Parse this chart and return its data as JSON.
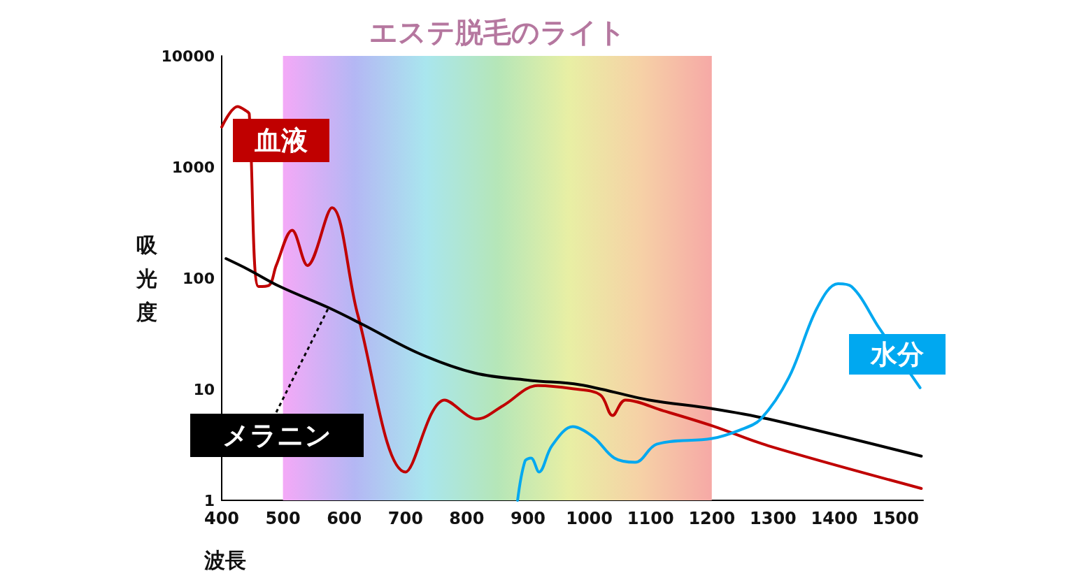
{
  "chart_data": {
    "type": "line",
    "xlabel": "波長",
    "ylabel": "吸光度",
    "log": "y",
    "grid": false,
    "legend": false,
    "marker": "none",
    "line_style": "solid",
    "xlim": [
      400,
      1545
    ],
    "xticks": [
      400,
      500,
      600,
      700,
      800,
      900,
      1000,
      1100,
      1200,
      1300,
      1400,
      1500
    ],
    "ylim": [
      1,
      10000
    ],
    "yticks": [
      1,
      10,
      100,
      1000,
      10000
    ],
    "bands": [
      {
        "axis": "x",
        "from": 500,
        "to": 1200,
        "label": "エステ脱毛のライト"
      }
    ],
    "series": [
      {
        "name": "血液",
        "color": "#c00000",
        "x": [
          400,
          426,
          440,
          445,
          460,
          477,
          489,
          515,
          540,
          580,
          622,
          700,
          764,
          817,
          859,
          916,
          973,
          1018,
          1038,
          1059,
          1121,
          1200,
          1292,
          1542
        ],
        "values": [
          2290,
          3500,
          3200,
          3000,
          84,
          86,
          130,
          270,
          130,
          430,
          47,
          1.8,
          8,
          5.4,
          7.1,
          10.8,
          10.1,
          8.9,
          5.8,
          8,
          6.4,
          4.7,
          3.1,
          1.28
        ]
      },
      {
        "name": "メラニン",
        "color": "#000000",
        "x": [
          407,
          443,
          495,
          575,
          631,
          722,
          813,
          904,
          984,
          1098,
          1200,
          1292,
          1542
        ],
        "values": [
          150,
          120,
          84,
          54,
          38,
          21,
          14,
          12,
          11,
          8,
          6.7,
          5.4,
          2.5
        ]
      },
      {
        "name": "水分",
        "color": "#00a8f0",
        "x": [
          883,
          895,
          905,
          918,
          939,
          973,
          1007,
          1041,
          1075,
          1110,
          1200,
          1246,
          1280,
          1326,
          1372,
          1406,
          1428,
          1474,
          1540
        ],
        "values": [
          1,
          2.25,
          2.4,
          1.8,
          3.1,
          4.6,
          3.7,
          2.4,
          2.2,
          3.2,
          3.6,
          4.3,
          5.4,
          12.8,
          54,
          89,
          84,
          35,
          10.3
        ]
      }
    ]
  }
}
